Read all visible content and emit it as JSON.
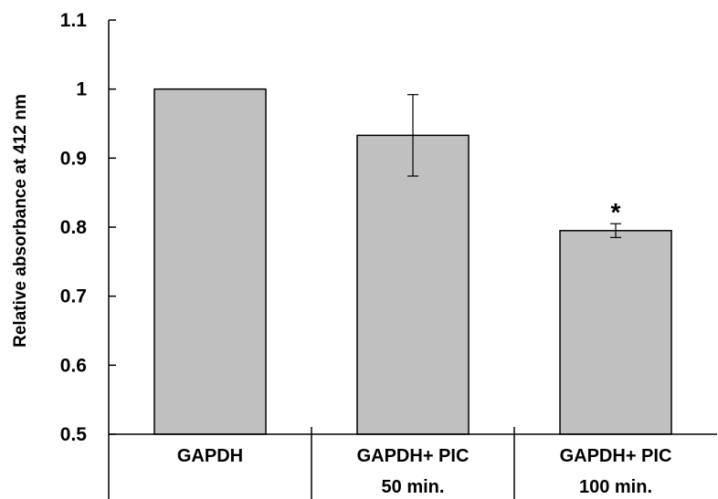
{
  "chart_data": {
    "type": "bar",
    "ylabel": "Relative absorbance at 412 nm",
    "ylim": [
      0.5,
      1.1
    ],
    "yticks": [
      "0.5",
      "0.6",
      "0.7",
      "0.8",
      "0.9",
      "1",
      "1.1"
    ],
    "categories": [
      {
        "line1": "GAPDH",
        "line2": ""
      },
      {
        "line1": "GAPDH+ PIC",
        "line2": "50 min."
      },
      {
        "line1": "GAPDH+ PIC",
        "line2": "100 min."
      }
    ],
    "values": [
      1.0,
      0.933,
      0.795
    ],
    "errors": [
      0,
      0.059,
      0.01
    ],
    "annotations": [
      "",
      "",
      "*"
    ],
    "bar_color": "#c0c0c0",
    "grid": false
  }
}
